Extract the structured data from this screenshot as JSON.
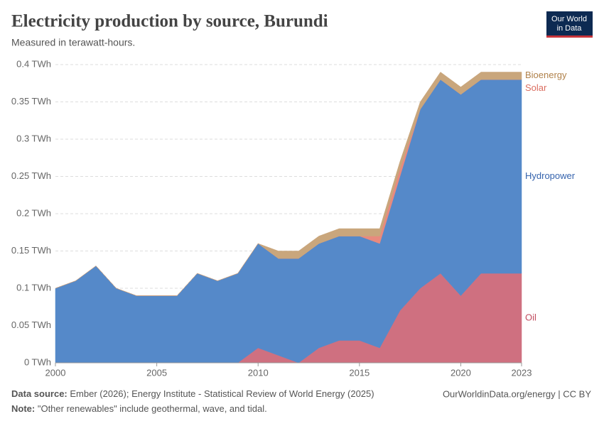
{
  "chart_data": {
    "type": "stacked-area",
    "title": "Electricity production by source, Burundi",
    "subtitle": "Measured in terawatt-hours.",
    "x": [
      2000,
      2001,
      2002,
      2003,
      2004,
      2005,
      2006,
      2007,
      2008,
      2009,
      2010,
      2011,
      2012,
      2013,
      2014,
      2015,
      2016,
      2017,
      2018,
      2019,
      2020,
      2021,
      2022,
      2023
    ],
    "series": [
      {
        "name": "Oil",
        "color": "#cf7080",
        "label_color": "#c24d60",
        "values": [
          0,
          0,
          0,
          0,
          0,
          0,
          0,
          0,
          0,
          0,
          0.02,
          0.01,
          0,
          0.02,
          0.03,
          0.03,
          0.02,
          0.07,
          0.1,
          0.12,
          0.09,
          0.12,
          0.12,
          0.12
        ]
      },
      {
        "name": "Hydropower",
        "color": "#5589c9",
        "label_color": "#3563ad",
        "values": [
          0.1,
          0.11,
          0.13,
          0.1,
          0.09,
          0.09,
          0.09,
          0.12,
          0.11,
          0.12,
          0.14,
          0.13,
          0.14,
          0.14,
          0.14,
          0.14,
          0.14,
          0.18,
          0.24,
          0.26,
          0.27,
          0.26,
          0.26,
          0.26
        ]
      },
      {
        "name": "Solar",
        "color": "#e88a7e",
        "label_color": "#db6e60",
        "values": [
          0,
          0,
          0,
          0,
          0,
          0,
          0,
          0,
          0,
          0,
          0,
          0,
          0,
          0,
          0,
          0,
          0.01,
          0.01,
          0,
          0,
          0,
          0,
          0,
          0
        ]
      },
      {
        "name": "Bioenergy",
        "color": "#c9a67c",
        "label_color": "#b0814a",
        "values": [
          0,
          0,
          0,
          0,
          0,
          0,
          0,
          0,
          0,
          0,
          0,
          0.01,
          0.01,
          0.01,
          0.01,
          0.01,
          0.01,
          0.01,
          0.01,
          0.01,
          0.01,
          0.01,
          0.01,
          0.01
        ]
      }
    ],
    "xlim": [
      2000,
      2023
    ],
    "xticks": [
      2000,
      2005,
      2010,
      2015,
      2020,
      2023
    ],
    "ylim": [
      0,
      0.4
    ],
    "yticks": [
      {
        "value": 0,
        "label": "0 TWh"
      },
      {
        "value": 0.05,
        "label": "0.05 TWh"
      },
      {
        "value": 0.1,
        "label": "0.1 TWh"
      },
      {
        "value": 0.15,
        "label": "0.15 TWh"
      },
      {
        "value": 0.2,
        "label": "0.2 TWh"
      },
      {
        "value": 0.25,
        "label": "0.25 TWh"
      },
      {
        "value": 0.3,
        "label": "0.3 TWh"
      },
      {
        "value": 0.35,
        "label": "0.35 TWh"
      },
      {
        "value": 0.4,
        "label": "0.4 TWh"
      }
    ],
    "grid": true
  },
  "logo": [
    "Our World",
    "in Data"
  ],
  "footer": {
    "source_label": "Data source:",
    "source": "Ember (2026); Energy Institute - Statistical Review of World Energy (2025)",
    "url": "OurWorldinData.org/energy | CC BY",
    "note_label": "Note:",
    "note": "\"Other renewables\" include geothermal, wave, and tidal."
  }
}
